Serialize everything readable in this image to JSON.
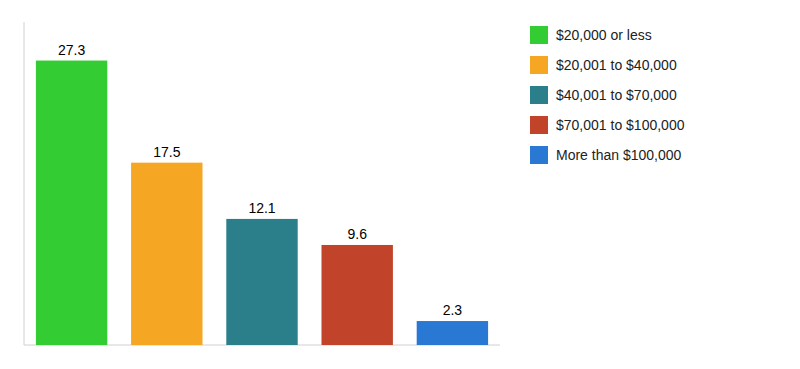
{
  "chart_data": {
    "type": "bar",
    "categories": [
      "$20,000 or less",
      "$20,001 to $40,000",
      "$40,001 to $70,000",
      "$70,001 to $100,000",
      "More than $100,000"
    ],
    "values": [
      27.3,
      17.5,
      12.1,
      9.6,
      2.3
    ],
    "colors": [
      "#33cc33",
      "#f5a623",
      "#2a7f8a",
      "#c0432a",
      "#2878d4"
    ],
    "ylim": [
      0,
      31
    ],
    "data_labels": true,
    "tick_labels": false,
    "legend": "upper right"
  }
}
